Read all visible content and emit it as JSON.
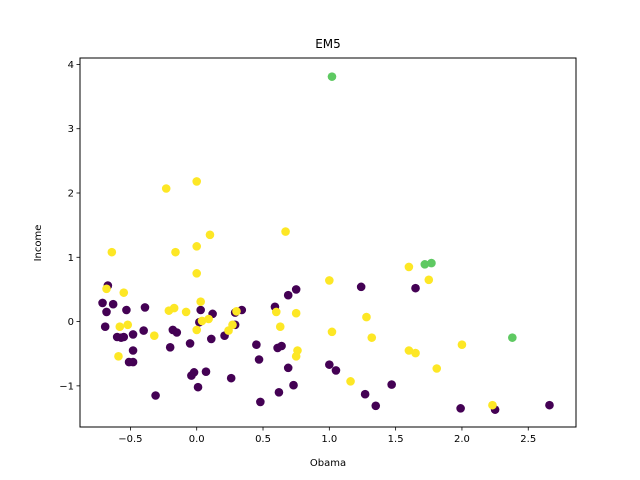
{
  "chart_data": {
    "type": "scatter",
    "title": "EM5",
    "xlabel": "Obama",
    "ylabel": "Income",
    "xlim": [
      -0.88,
      2.86
    ],
    "ylim": [
      -1.64,
      4.1
    ],
    "xticks": [
      "−0.5",
      "0.0",
      "0.5",
      "1.0",
      "1.5",
      "2.0",
      "2.5"
    ],
    "yticks": [
      "−1",
      "0",
      "1",
      "2",
      "3",
      "4"
    ],
    "grid": false,
    "colors": {
      "cluster_0": "#440154",
      "cluster_1": "#5ec962",
      "cluster_2": "#fde725"
    },
    "series": [
      {
        "cluster": "cluster_0",
        "points": [
          [
            -0.67,
            0.56
          ],
          [
            -0.71,
            0.29
          ],
          [
            -0.68,
            0.15
          ],
          [
            -0.63,
            0.27
          ],
          [
            -0.69,
            -0.08
          ],
          [
            -0.53,
            0.18
          ],
          [
            -0.57,
            -0.25
          ],
          [
            -0.6,
            -0.24
          ],
          [
            -0.55,
            -0.24
          ],
          [
            -0.48,
            -0.2
          ],
          [
            -0.51,
            -0.63
          ],
          [
            -0.48,
            -0.63
          ],
          [
            -0.48,
            -0.45
          ],
          [
            -0.39,
            0.22
          ],
          [
            -0.4,
            -0.14
          ],
          [
            -0.31,
            -1.15
          ],
          [
            -0.2,
            -0.4
          ],
          [
            -0.18,
            -0.13
          ],
          [
            -0.15,
            -0.17
          ],
          [
            -0.05,
            -0.34
          ],
          [
            -0.04,
            -0.84
          ],
          [
            -0.02,
            -0.79
          ],
          [
            0.01,
            -1.02
          ],
          [
            0.03,
            0.18
          ],
          [
            0.02,
            -0.01
          ],
          [
            0.07,
            -0.78
          ],
          [
            0.12,
            0.12
          ],
          [
            0.11,
            -0.27
          ],
          [
            0.21,
            -0.22
          ],
          [
            0.26,
            -0.88
          ],
          [
            0.29,
            0.14
          ],
          [
            0.29,
            -0.05
          ],
          [
            0.34,
            0.18
          ],
          [
            0.45,
            -0.36
          ],
          [
            0.47,
            -0.59
          ],
          [
            0.48,
            -1.25
          ],
          [
            0.59,
            0.23
          ],
          [
            0.61,
            -0.41
          ],
          [
            0.64,
            -0.38
          ],
          [
            0.62,
            -1.1
          ],
          [
            0.69,
            0.41
          ],
          [
            0.69,
            -0.72
          ],
          [
            0.73,
            -0.99
          ],
          [
            0.75,
            0.5
          ],
          [
            1.0,
            -0.67
          ],
          [
            1.05,
            -0.76
          ],
          [
            1.24,
            0.54
          ],
          [
            1.27,
            -1.13
          ],
          [
            1.35,
            -1.31
          ],
          [
            1.47,
            -0.98
          ],
          [
            1.65,
            0.52
          ],
          [
            1.99,
            -1.35
          ],
          [
            2.25,
            -1.37
          ],
          [
            2.66,
            -1.3
          ]
        ]
      },
      {
        "cluster": "cluster_1",
        "points": [
          [
            1.02,
            3.81
          ],
          [
            1.72,
            0.89
          ],
          [
            1.77,
            0.91
          ],
          [
            2.38,
            -0.25
          ]
        ]
      },
      {
        "cluster": "cluster_2",
        "points": [
          [
            -0.23,
            2.07
          ],
          [
            0.0,
            2.18
          ],
          [
            0.1,
            1.35
          ],
          [
            0.0,
            1.17
          ],
          [
            0.67,
            1.4
          ],
          [
            -0.64,
            1.08
          ],
          [
            -0.16,
            1.08
          ],
          [
            0.0,
            0.75
          ],
          [
            -0.55,
            0.45
          ],
          [
            -0.68,
            0.51
          ],
          [
            -0.58,
            -0.08
          ],
          [
            -0.52,
            -0.05
          ],
          [
            -0.59,
            -0.54
          ],
          [
            -0.32,
            -0.22
          ],
          [
            -0.21,
            0.17
          ],
          [
            -0.17,
            0.21
          ],
          [
            -0.08,
            0.15
          ],
          [
            0.03,
            0.31
          ],
          [
            0.04,
            0.01
          ],
          [
            0.09,
            0.04
          ],
          [
            0.0,
            -0.13
          ],
          [
            0.24,
            -0.14
          ],
          [
            0.27,
            -0.05
          ],
          [
            0.3,
            0.16
          ],
          [
            0.6,
            0.15
          ],
          [
            0.63,
            -0.08
          ],
          [
            0.75,
            0.13
          ],
          [
            0.76,
            -0.45
          ],
          [
            0.75,
            -0.54
          ],
          [
            1.0,
            0.64
          ],
          [
            1.02,
            -0.16
          ],
          [
            1.28,
            0.07
          ],
          [
            1.32,
            -0.25
          ],
          [
            1.6,
            0.85
          ],
          [
            1.6,
            -0.45
          ],
          [
            1.65,
            -0.49
          ],
          [
            1.75,
            0.65
          ],
          [
            1.81,
            -0.73
          ],
          [
            2.0,
            -0.36
          ],
          [
            2.23,
            -1.3
          ],
          [
            1.16,
            -0.93
          ]
        ]
      }
    ]
  }
}
